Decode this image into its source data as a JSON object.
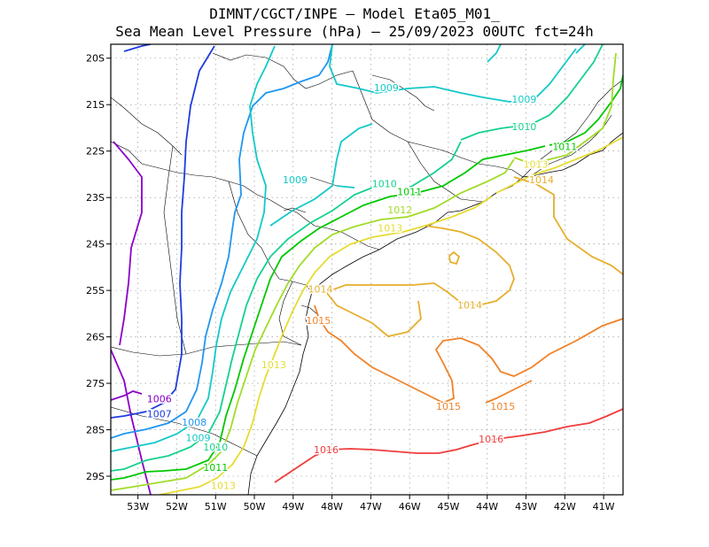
{
  "title": {
    "line1": "DIMNT/CGCT/INPE –  Model Eta05_M01_",
    "line2": "Sea Mean Level Pressure (hPa) – 25/09/2023 00UTC fct=24h"
  },
  "axes": {
    "x_labels": [
      "53W",
      "52W",
      "51W",
      "50W",
      "49W",
      "48W",
      "47W",
      "46W",
      "45W",
      "44W",
      "43W",
      "42W",
      "41W"
    ],
    "y_labels": [
      "20S",
      "21S",
      "22S",
      "23S",
      "24S",
      "25S",
      "26S",
      "27S",
      "28S",
      "29S"
    ],
    "lon_range": [
      -53.7,
      -40.5
    ],
    "lat_range": [
      -29.4,
      -19.7
    ]
  },
  "colors": {
    "1006": "#8b00c8",
    "1007": "#1e3ce0",
    "1008": "#1e96f0",
    "1009": "#14c8c8",
    "1010": "#14d28c",
    "1011": "#00c800",
    "1012": "#a0dc28",
    "1013": "#e6dc32",
    "1014": "#e6af2d",
    "1015": "#f08228",
    "1016": "#f03c3c"
  },
  "contour_labels": [
    {
      "text": "1006",
      "level": "1006",
      "lon": -52.45,
      "lat": -27.33
    },
    {
      "text": "1007",
      "level": "1007",
      "lon": -52.45,
      "lat": -27.66
    },
    {
      "text": "1008",
      "level": "1008",
      "lon": -51.55,
      "lat": -27.84
    },
    {
      "text": "1009",
      "level": "1009",
      "lon": -51.45,
      "lat": -28.17
    },
    {
      "text": "1010",
      "level": "1010",
      "lon": -51.0,
      "lat": -28.37
    },
    {
      "text": "1011",
      "level": "1011",
      "lon": -51.0,
      "lat": -28.81
    },
    {
      "text": "1013",
      "level": "1013",
      "lon": -49.5,
      "lat": -26.6
    },
    {
      "text": "1013",
      "level": "1013",
      "lon": -50.8,
      "lat": -29.2
    },
    {
      "text": "1009",
      "level": "1009",
      "lon": -46.6,
      "lat": -20.63
    },
    {
      "text": "1009",
      "level": "1009",
      "lon": -43.05,
      "lat": -20.88
    },
    {
      "text": "1010",
      "level": "1010",
      "lon": -43.05,
      "lat": -21.47
    },
    {
      "text": "1011",
      "level": "1011",
      "lon": -42.0,
      "lat": -21.9
    },
    {
      "text": "1013",
      "level": "1013",
      "lon": -42.75,
      "lat": -22.28
    },
    {
      "text": "1014",
      "level": "1014",
      "lon": -42.6,
      "lat": -22.62
    },
    {
      "text": "1009",
      "level": "1009",
      "lon": -48.95,
      "lat": -22.62
    },
    {
      "text": "1010",
      "level": "1010",
      "lon": -46.65,
      "lat": -22.7
    },
    {
      "text": "1011",
      "level": "1011",
      "lon": -46.0,
      "lat": -22.87
    },
    {
      "text": "1012",
      "level": "1012",
      "lon": -46.25,
      "lat": -23.26
    },
    {
      "text": "1013",
      "level": "1013",
      "lon": -46.5,
      "lat": -23.65
    },
    {
      "text": "1014",
      "level": "1014",
      "lon": -48.3,
      "lat": -24.97
    },
    {
      "text": "1014",
      "level": "1014",
      "lon": -44.45,
      "lat": -25.31
    },
    {
      "text": "1015",
      "level": "1015",
      "lon": -48.35,
      "lat": -25.65
    },
    {
      "text": "1015",
      "level": "1015",
      "lon": -45.0,
      "lat": -27.49
    },
    {
      "text": "1015",
      "level": "1015",
      "lon": -43.6,
      "lat": -27.49
    },
    {
      "text": "1016",
      "level": "1016",
      "lon": -48.15,
      "lat": -28.43
    },
    {
      "text": "1016",
      "level": "1016",
      "lon": -43.9,
      "lat": -28.2
    }
  ]
}
